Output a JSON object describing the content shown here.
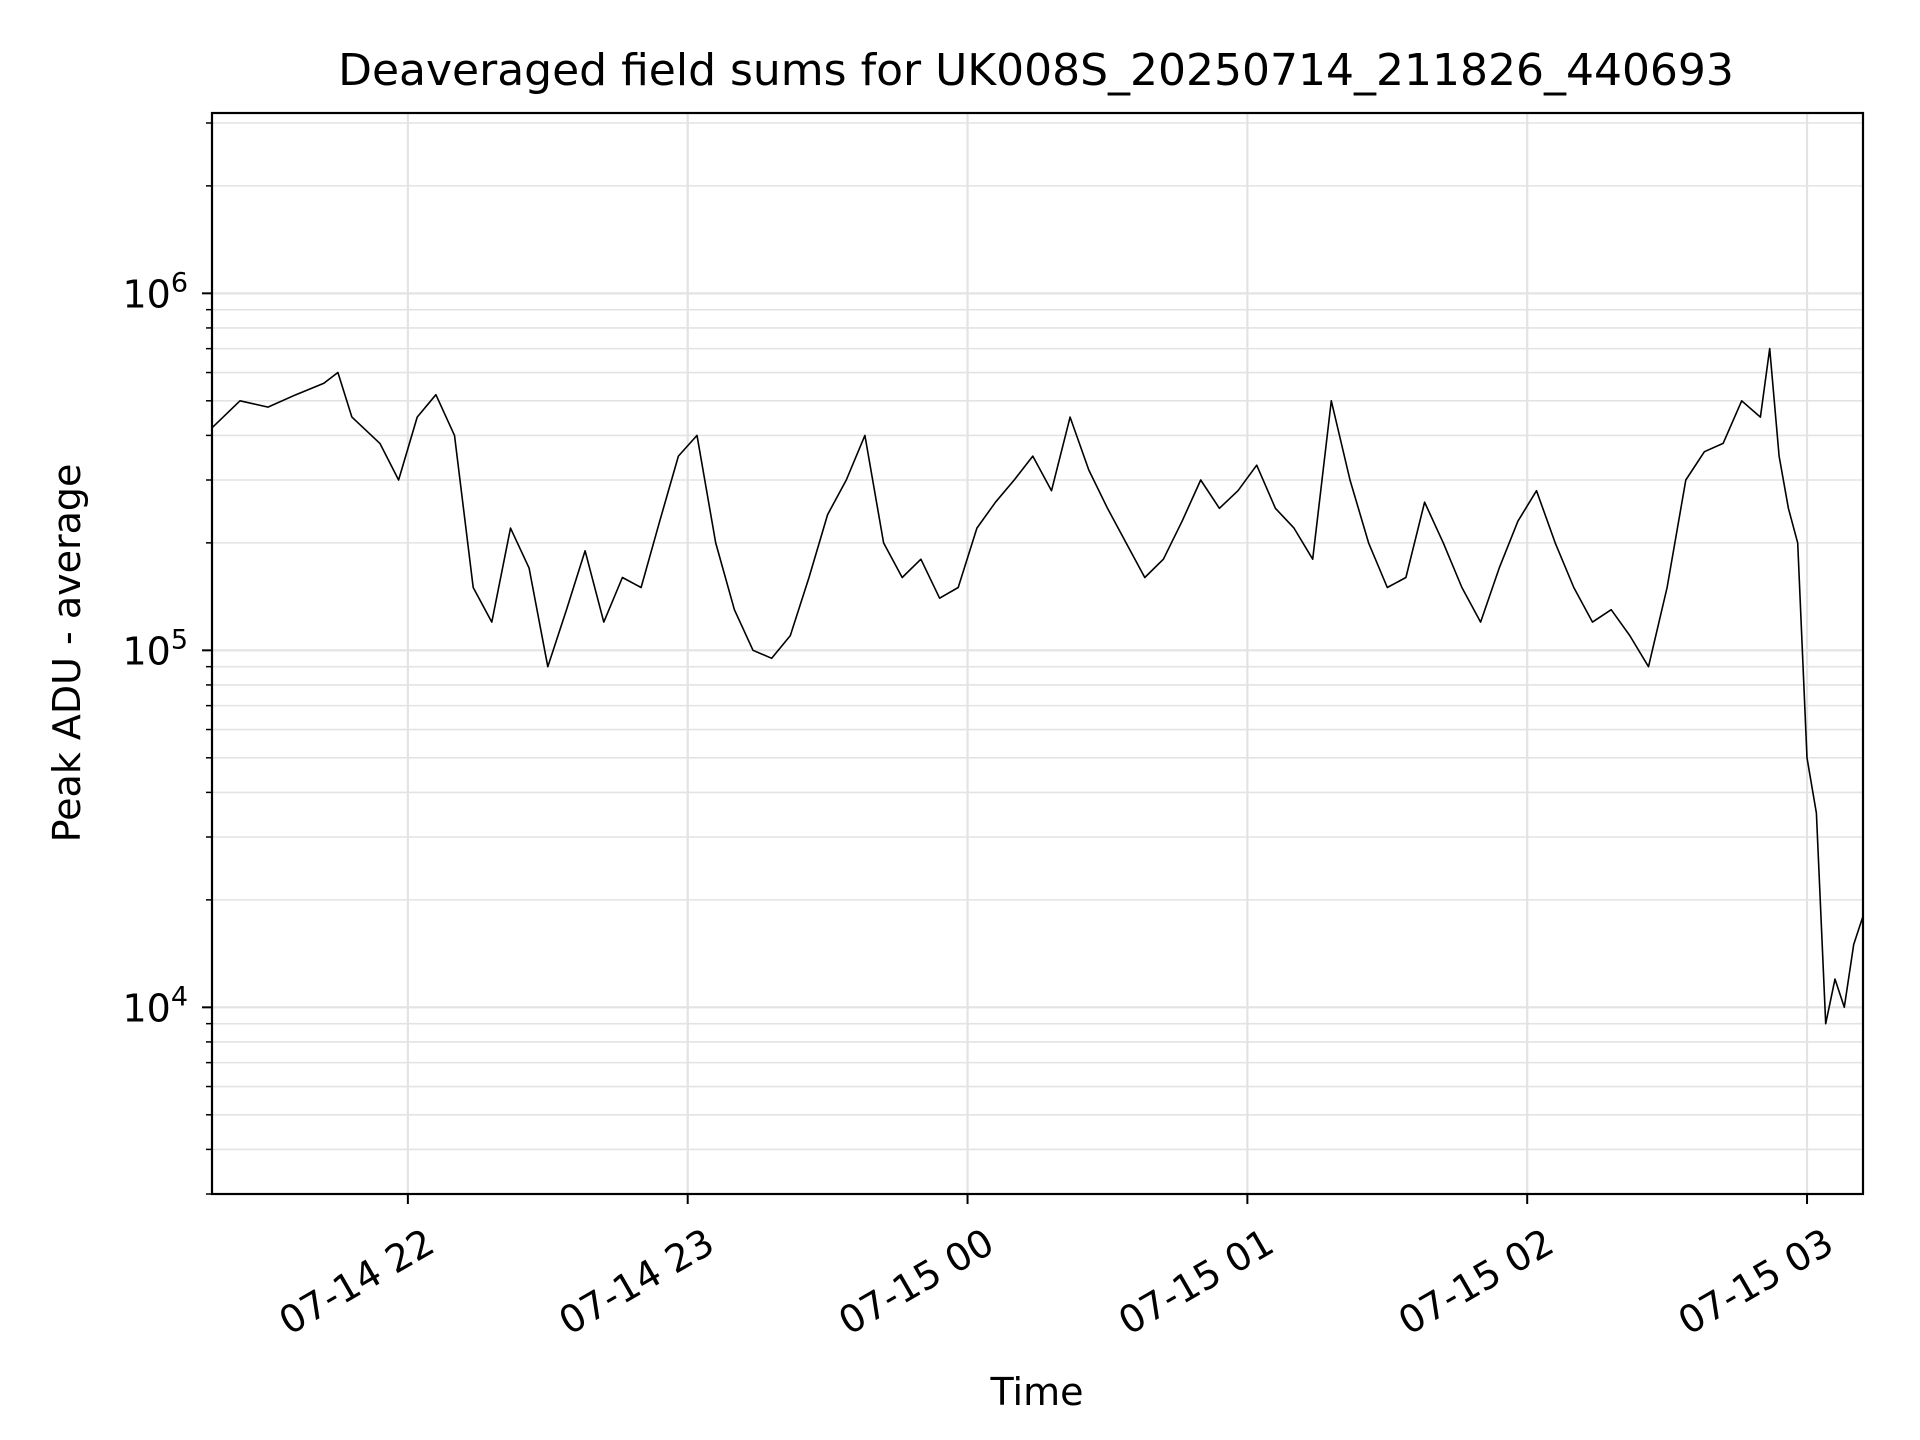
{
  "chart_data": {
    "type": "line",
    "title": "Deaveraged field sums for UK008S_20250714_211826_440693",
    "xlabel": "Time",
    "ylabel": "Peak ADU - average",
    "yscale": "log",
    "ylim": [
      3000,
      3200000
    ],
    "xlim": [
      "2025-07-14 21:18:00",
      "2025-07-15 03:12:00"
    ],
    "grid": true,
    "line_color": "#000000",
    "x_ticks": [
      {
        "value": "2025-07-14 22:00:00",
        "label": "07-14 22"
      },
      {
        "value": "2025-07-14 23:00:00",
        "label": "07-14 23"
      },
      {
        "value": "2025-07-15 00:00:00",
        "label": "07-15 00"
      },
      {
        "value": "2025-07-15 01:00:00",
        "label": "07-15 01"
      },
      {
        "value": "2025-07-15 02:00:00",
        "label": "07-15 02"
      },
      {
        "value": "2025-07-15 03:00:00",
        "label": "07-15 03"
      }
    ],
    "y_ticks": [
      {
        "value": 10000,
        "base": "10",
        "exp": "4"
      },
      {
        "value": 100000,
        "base": "10",
        "exp": "5"
      },
      {
        "value": 1000000,
        "base": "10",
        "exp": "6"
      }
    ],
    "series": [
      {
        "x": [
          "2025-07-14 21:18:00",
          "2025-07-14 21:24:00",
          "2025-07-14 21:30:00",
          "2025-07-14 21:36:00",
          "2025-07-14 21:42:00",
          "2025-07-14 21:45:00",
          "2025-07-14 21:48:00",
          "2025-07-14 21:54:00",
          "2025-07-14 21:58:00",
          "2025-07-14 22:02:00",
          "2025-07-14 22:06:00",
          "2025-07-14 22:10:00",
          "2025-07-14 22:14:00",
          "2025-07-14 22:18:00",
          "2025-07-14 22:22:00",
          "2025-07-14 22:26:00",
          "2025-07-14 22:30:00",
          "2025-07-14 22:34:00",
          "2025-07-14 22:38:00",
          "2025-07-14 22:42:00",
          "2025-07-14 22:46:00",
          "2025-07-14 22:50:00",
          "2025-07-14 22:54:00",
          "2025-07-14 22:58:00",
          "2025-07-14 23:02:00",
          "2025-07-14 23:06:00",
          "2025-07-14 23:10:00",
          "2025-07-14 23:14:00",
          "2025-07-14 23:18:00",
          "2025-07-14 23:22:00",
          "2025-07-14 23:26:00",
          "2025-07-14 23:30:00",
          "2025-07-14 23:34:00",
          "2025-07-14 23:38:00",
          "2025-07-14 23:42:00",
          "2025-07-14 23:46:00",
          "2025-07-14 23:50:00",
          "2025-07-14 23:54:00",
          "2025-07-14 23:58:00",
          "2025-07-15 00:02:00",
          "2025-07-15 00:06:00",
          "2025-07-15 00:10:00",
          "2025-07-15 00:14:00",
          "2025-07-15 00:18:00",
          "2025-07-15 00:22:00",
          "2025-07-15 00:26:00",
          "2025-07-15 00:30:00",
          "2025-07-15 00:34:00",
          "2025-07-15 00:38:00",
          "2025-07-15 00:42:00",
          "2025-07-15 00:46:00",
          "2025-07-15 00:50:00",
          "2025-07-15 00:54:00",
          "2025-07-15 00:58:00",
          "2025-07-15 01:02:00",
          "2025-07-15 01:06:00",
          "2025-07-15 01:10:00",
          "2025-07-15 01:14:00",
          "2025-07-15 01:18:00",
          "2025-07-15 01:22:00",
          "2025-07-15 01:26:00",
          "2025-07-15 01:30:00",
          "2025-07-15 01:34:00",
          "2025-07-15 01:38:00",
          "2025-07-15 01:42:00",
          "2025-07-15 01:46:00",
          "2025-07-15 01:50:00",
          "2025-07-15 01:54:00",
          "2025-07-15 01:58:00",
          "2025-07-15 02:02:00",
          "2025-07-15 02:06:00",
          "2025-07-15 02:10:00",
          "2025-07-15 02:14:00",
          "2025-07-15 02:18:00",
          "2025-07-15 02:22:00",
          "2025-07-15 02:26:00",
          "2025-07-15 02:30:00",
          "2025-07-15 02:34:00",
          "2025-07-15 02:38:00",
          "2025-07-15 02:42:00",
          "2025-07-15 02:46:00",
          "2025-07-15 02:50:00",
          "2025-07-15 02:52:00",
          "2025-07-15 02:54:00",
          "2025-07-15 02:56:00",
          "2025-07-15 02:58:00",
          "2025-07-15 03:00:00",
          "2025-07-15 03:02:00",
          "2025-07-15 03:04:00",
          "2025-07-15 03:06:00",
          "2025-07-15 03:08:00",
          "2025-07-15 03:10:00",
          "2025-07-15 03:12:00"
        ],
        "y": [
          420000,
          500000,
          480000,
          520000,
          560000,
          600000,
          450000,
          380000,
          300000,
          450000,
          520000,
          400000,
          150000,
          120000,
          220000,
          170000,
          90000,
          130000,
          190000,
          120000,
          160000,
          150000,
          230000,
          350000,
          400000,
          200000,
          130000,
          100000,
          95000,
          110000,
          160000,
          240000,
          300000,
          400000,
          200000,
          160000,
          180000,
          140000,
          150000,
          220000,
          260000,
          300000,
          350000,
          280000,
          450000,
          320000,
          250000,
          200000,
          160000,
          180000,
          230000,
          300000,
          250000,
          280000,
          330000,
          250000,
          220000,
          180000,
          500000,
          300000,
          200000,
          150000,
          160000,
          260000,
          200000,
          150000,
          120000,
          170000,
          230000,
          280000,
          200000,
          150000,
          120000,
          130000,
          110000,
          90000,
          150000,
          300000,
          360000,
          380000,
          500000,
          450000,
          700000,
          350000,
          250000,
          200000,
          50000,
          35000,
          9000,
          12000,
          10000,
          15000,
          18000
        ]
      }
    ]
  }
}
